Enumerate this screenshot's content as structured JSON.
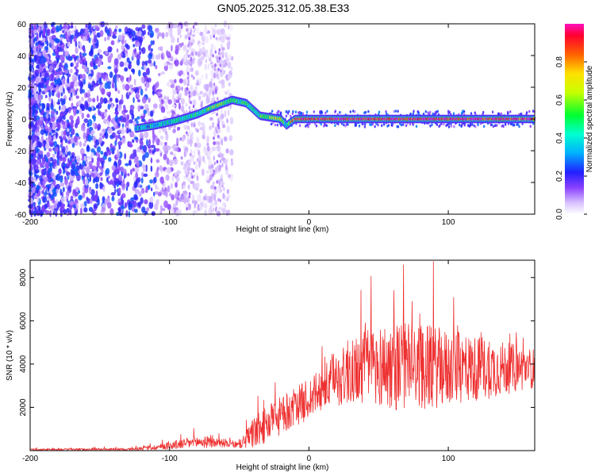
{
  "title": "GN05.2025.312.05.38.E33",
  "chart_data": [
    {
      "type": "heatmap",
      "name": "spectrogram",
      "xlabel": "Height of straight line (km)",
      "ylabel": "Frequency (Hz)",
      "xlim": [
        -200,
        162
      ],
      "ylim": [
        -60,
        60
      ],
      "xticks": [
        -200,
        -100,
        0,
        100
      ],
      "yticks": [
        -60,
        -40,
        -20,
        0,
        20,
        40,
        60
      ],
      "colorbar": {
        "label": "Normalized spectral amplitude",
        "range": [
          0,
          1
        ],
        "ticks": [
          "0.0",
          "0.2",
          "0.4",
          "0.6",
          "0.8"
        ],
        "tick_values": [
          0.0,
          0.2,
          0.4,
          0.6,
          0.8
        ]
      },
      "signal_track": [
        {
          "x": -124,
          "f": -6,
          "a": 0.3
        },
        {
          "x": -110,
          "f": -4,
          "a": 0.35
        },
        {
          "x": -95,
          "f": -1,
          "a": 0.4
        },
        {
          "x": -80,
          "f": 3,
          "a": 0.45
        },
        {
          "x": -70,
          "f": 7,
          "a": 0.55
        },
        {
          "x": -55,
          "f": 12,
          "a": 0.5
        },
        {
          "x": -45,
          "f": 10,
          "a": 0.45
        },
        {
          "x": -40,
          "f": 6,
          "a": 0.4
        },
        {
          "x": -35,
          "f": 2,
          "a": 0.5
        },
        {
          "x": -20,
          "f": 0,
          "a": 0.7
        },
        {
          "x": -16,
          "f": -4,
          "a": 0.4
        },
        {
          "x": -10,
          "f": 0,
          "a": 0.9
        },
        {
          "x": 50,
          "f": 0,
          "a": 0.95
        },
        {
          "x": 100,
          "f": 0,
          "a": 0.95
        },
        {
          "x": 162,
          "f": 0,
          "a": 0.9
        }
      ]
    },
    {
      "type": "line",
      "name": "snr",
      "xlabel": "Height of straight line (km)",
      "ylabel": "SNR (10 * v/v)",
      "xlim": [
        -200,
        162
      ],
      "ylim": [
        0,
        8800
      ],
      "xticks": [
        -200,
        -100,
        0,
        100
      ],
      "yticks": [
        2000,
        4000,
        6000,
        8000
      ],
      "color": "#ee3030",
      "envelope": [
        {
          "x": -200,
          "base": 50,
          "amp": 80
        },
        {
          "x": -130,
          "base": 60,
          "amp": 100
        },
        {
          "x": -110,
          "base": 150,
          "amp": 250
        },
        {
          "x": -80,
          "base": 400,
          "amp": 600
        },
        {
          "x": -60,
          "base": 350,
          "amp": 400
        },
        {
          "x": -50,
          "base": 250,
          "amp": 300
        },
        {
          "x": -40,
          "base": 800,
          "amp": 1500
        },
        {
          "x": -25,
          "base": 1400,
          "amp": 1800
        },
        {
          "x": -10,
          "base": 2000,
          "amp": 1800
        },
        {
          "x": 5,
          "base": 2600,
          "amp": 2000
        },
        {
          "x": 20,
          "base": 3300,
          "amp": 2500
        },
        {
          "x": 40,
          "base": 3900,
          "amp": 3500
        },
        {
          "x": 60,
          "base": 3900,
          "amp": 4200
        },
        {
          "x": 80,
          "base": 3900,
          "amp": 4000
        },
        {
          "x": 100,
          "base": 3800,
          "amp": 3600
        },
        {
          "x": 130,
          "base": 3800,
          "amp": 2800
        },
        {
          "x": 162,
          "base": 3800,
          "amp": 1800
        }
      ]
    }
  ]
}
